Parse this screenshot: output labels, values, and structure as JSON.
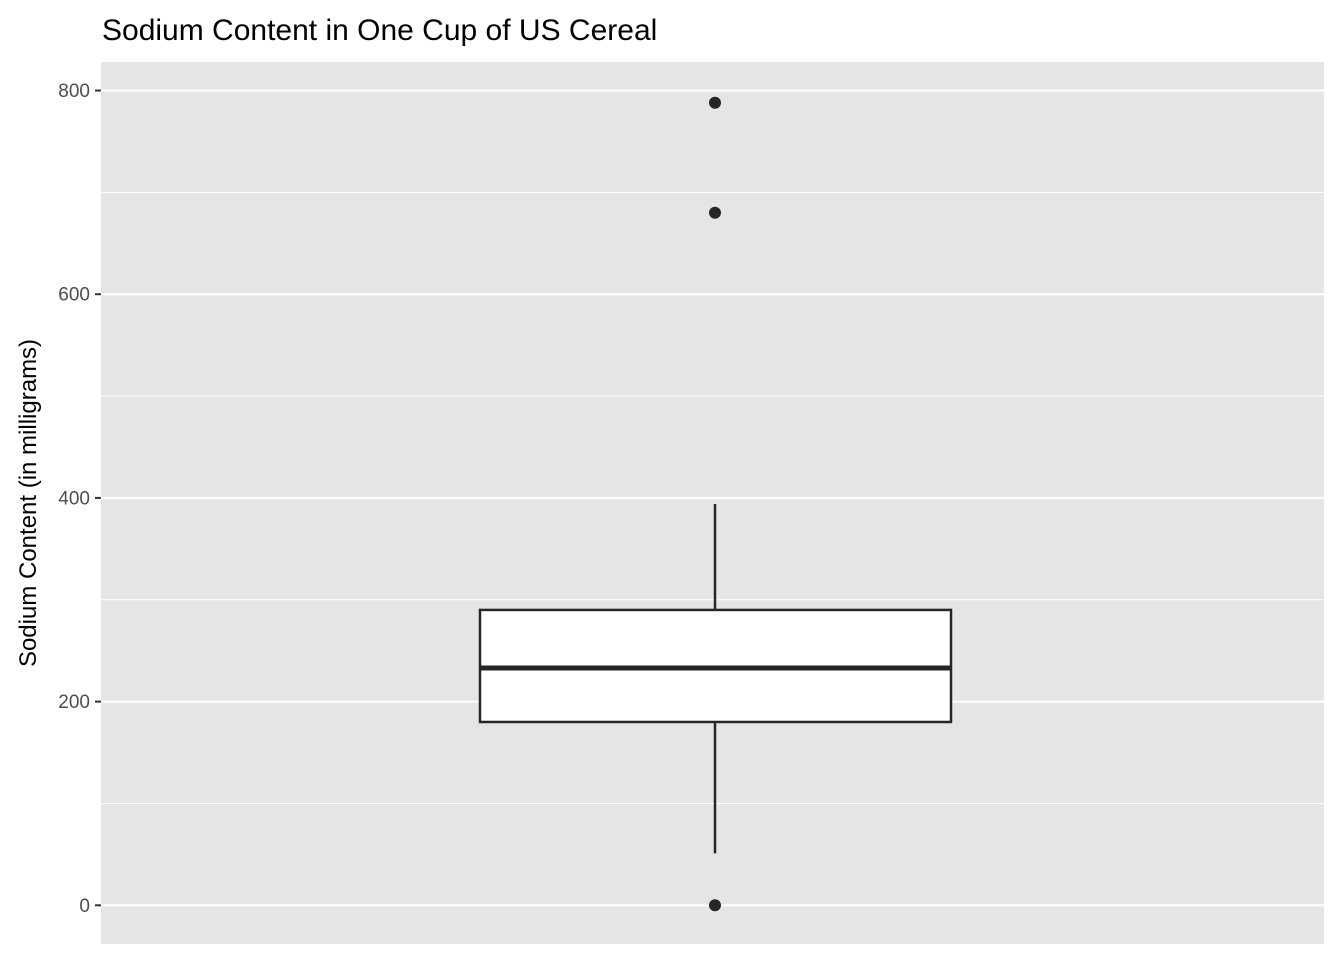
{
  "chart_data": {
    "type": "boxplot",
    "title": "Sodium Content in One Cup of US Cereal",
    "xlabel": "",
    "ylabel": "Sodium Content (in milligrams)",
    "ylim": [
      -38,
      828
    ],
    "yticks": [
      0,
      200,
      400,
      600,
      800
    ],
    "ytick_labels": [
      "0",
      "200",
      "400",
      "600",
      "800"
    ],
    "grid": true,
    "box": {
      "whisker_low": 51,
      "q1": 180,
      "median": 233,
      "q3": 290,
      "whisker_high": 394
    },
    "outliers": [
      0,
      680,
      788
    ],
    "colors": {
      "panel": "#e5e5e5",
      "grid": "#ffffff",
      "box_fill": "#ffffff",
      "box_line": "#262626",
      "text": "#000000",
      "tick_text": "#4d4d4d"
    }
  }
}
